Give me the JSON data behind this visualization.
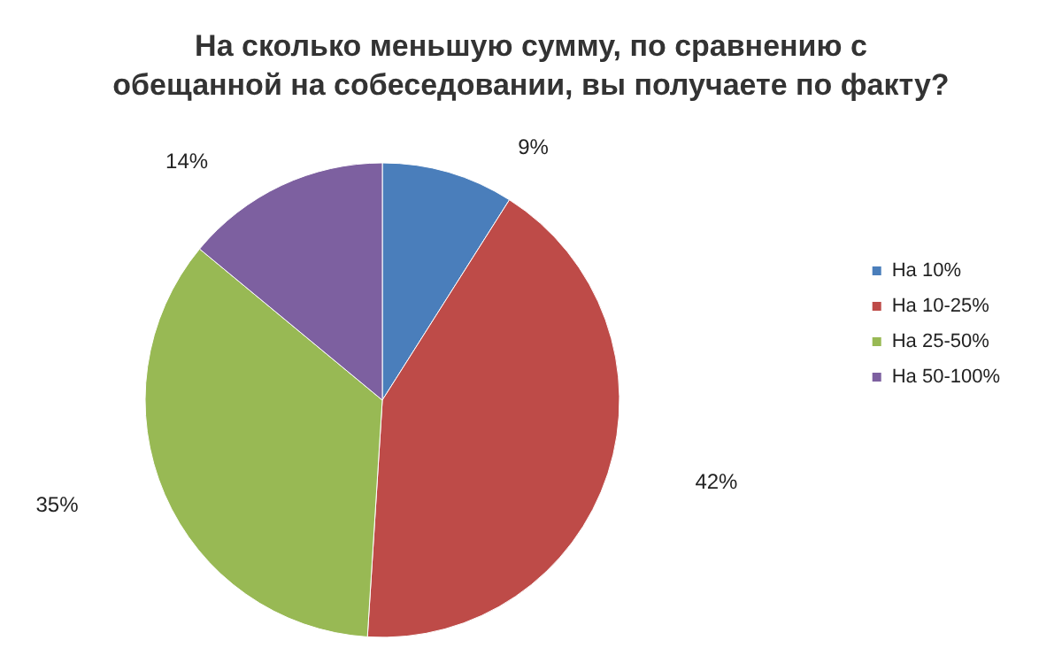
{
  "chart_data": {
    "type": "pie",
    "title": "На сколько меньшую сумму, по сравнению с\nобещанной на собеседовании, вы получаете по факту?",
    "categories": [
      "На 10%",
      "На 10-25%",
      "На 25-50%",
      "На 50-100%"
    ],
    "values": [
      9,
      42,
      35,
      14
    ],
    "value_labels": [
      "9%",
      "42%",
      "35%",
      "14%"
    ],
    "colors": [
      "#4a7ebb",
      "#be4b48",
      "#98b954",
      "#7d60a0"
    ],
    "legend": "right"
  }
}
